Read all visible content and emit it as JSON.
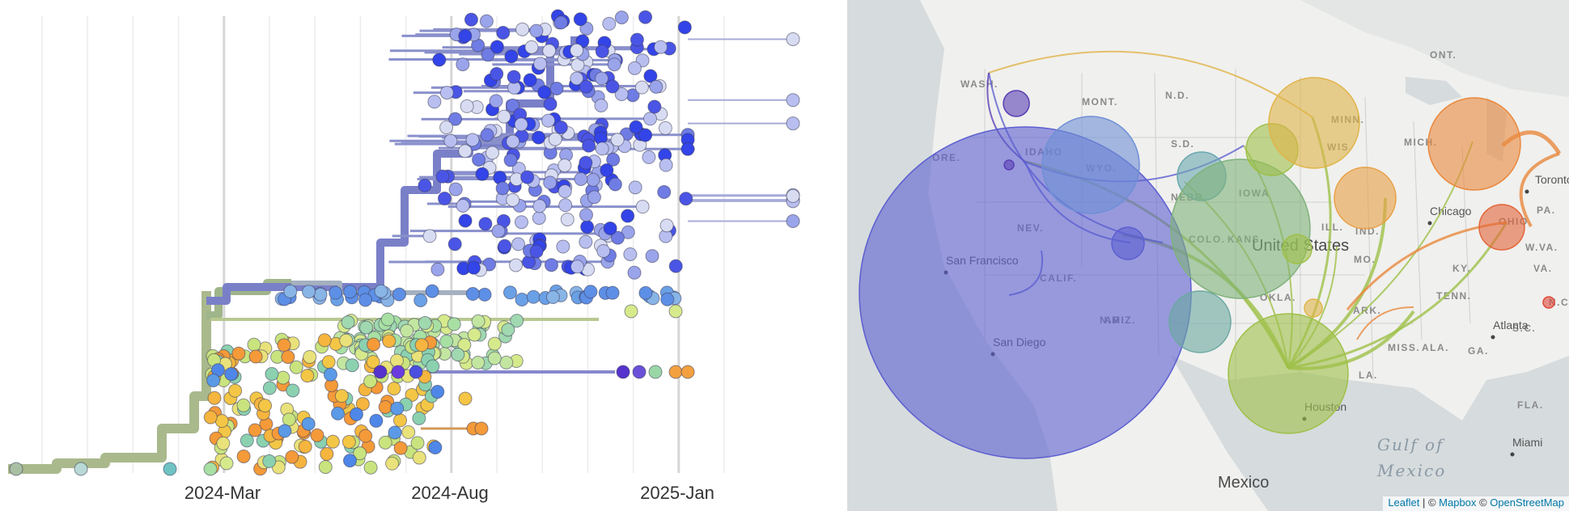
{
  "tree": {
    "x_axis": {
      "ticks": [
        "2024-Mar",
        "2024-Aug",
        "2025-Jan"
      ]
    }
  },
  "map": {
    "country_labels": [
      "United States",
      "Mexico"
    ],
    "state_labels": [
      "WASH.",
      "MONT.",
      "N.D.",
      "MINN.",
      "WIS.",
      "MICH.",
      "ONT.",
      "IDAHO",
      "WYO.",
      "S.D.",
      "NEBR.",
      "IOWA",
      "ILL.",
      "IND.",
      "OHIO",
      "PA.",
      "W.VA.",
      "VA.",
      "KY.",
      "TENN.",
      "N.C.",
      "S.C.",
      "GA.",
      "ALA.",
      "MISS.",
      "LA.",
      "ARK.",
      "MO.",
      "KANS.",
      "OKLA.",
      "COLO.",
      "NEV.",
      "CALIF.",
      "ARIZ.",
      "N.M.",
      "FLA.",
      "ORE."
    ],
    "city_labels": [
      "San Francisco",
      "San Diego",
      "Houston",
      "Chicago",
      "Toronto",
      "Atlanta",
      "Miami"
    ],
    "water_labels": [
      "Gulf of",
      "Mexico"
    ],
    "attribution": {
      "leaflet": "Leaflet",
      "separator": " | © ",
      "mapbox": "Mapbox",
      "mid": " © ",
      "osm": "OpenStreetMap"
    },
    "colors": {
      "california": "#5c5fd0",
      "idaho": "#6f8fd6",
      "colorado": "#7fb27a",
      "texas": "#9fc049",
      "minnesota": "#e0b449",
      "michigan": "#e9883d",
      "ohio": "#e2663a",
      "washington": "#5a3fb4",
      "iowa": "#e8a045"
    }
  }
}
